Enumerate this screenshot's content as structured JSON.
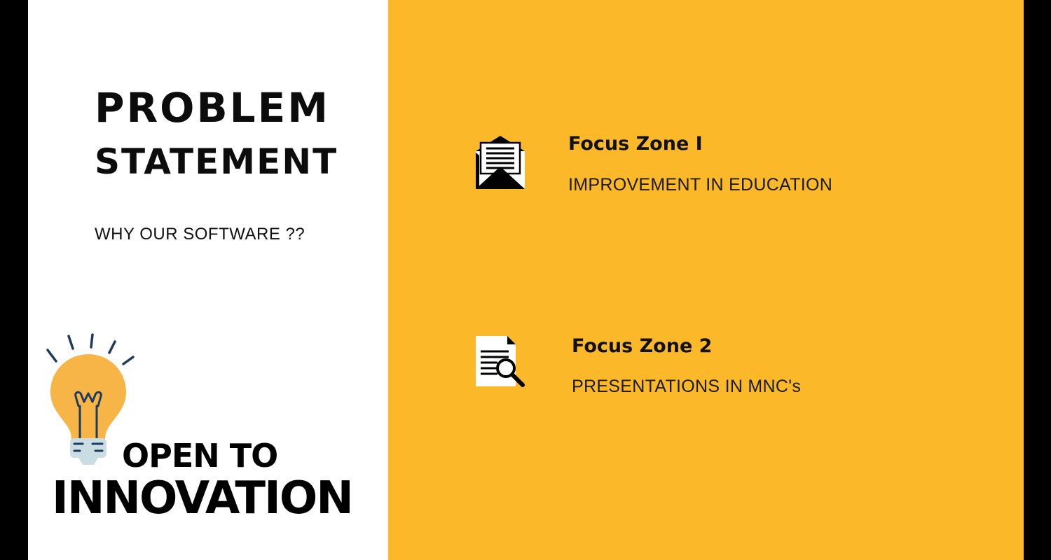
{
  "left": {
    "title_line1": "PROBLEM",
    "title_line2": "STATEMENT",
    "subtitle": "WHY OUR SOFTWARE ??",
    "badge_line1": "OPEN TO",
    "badge_line2": "INNOVATION",
    "badge_icon": "lightbulb-icon"
  },
  "zones": [
    {
      "title": "Focus Zone I",
      "description": "IMPROVEMENT IN EDUCATION",
      "icon": "open-envelope-icon"
    },
    {
      "title": "Focus Zone 2",
      "description": "PRESENTATIONS IN MNC's",
      "icon": "document-search-icon"
    }
  ],
  "colors": {
    "accent": "#fbb829",
    "left_background": "#ffffff",
    "frame": "#000000",
    "bulb": "#f8b547",
    "bulb_base": "#c9dde2",
    "bulb_rays": "#1e3a5c"
  }
}
